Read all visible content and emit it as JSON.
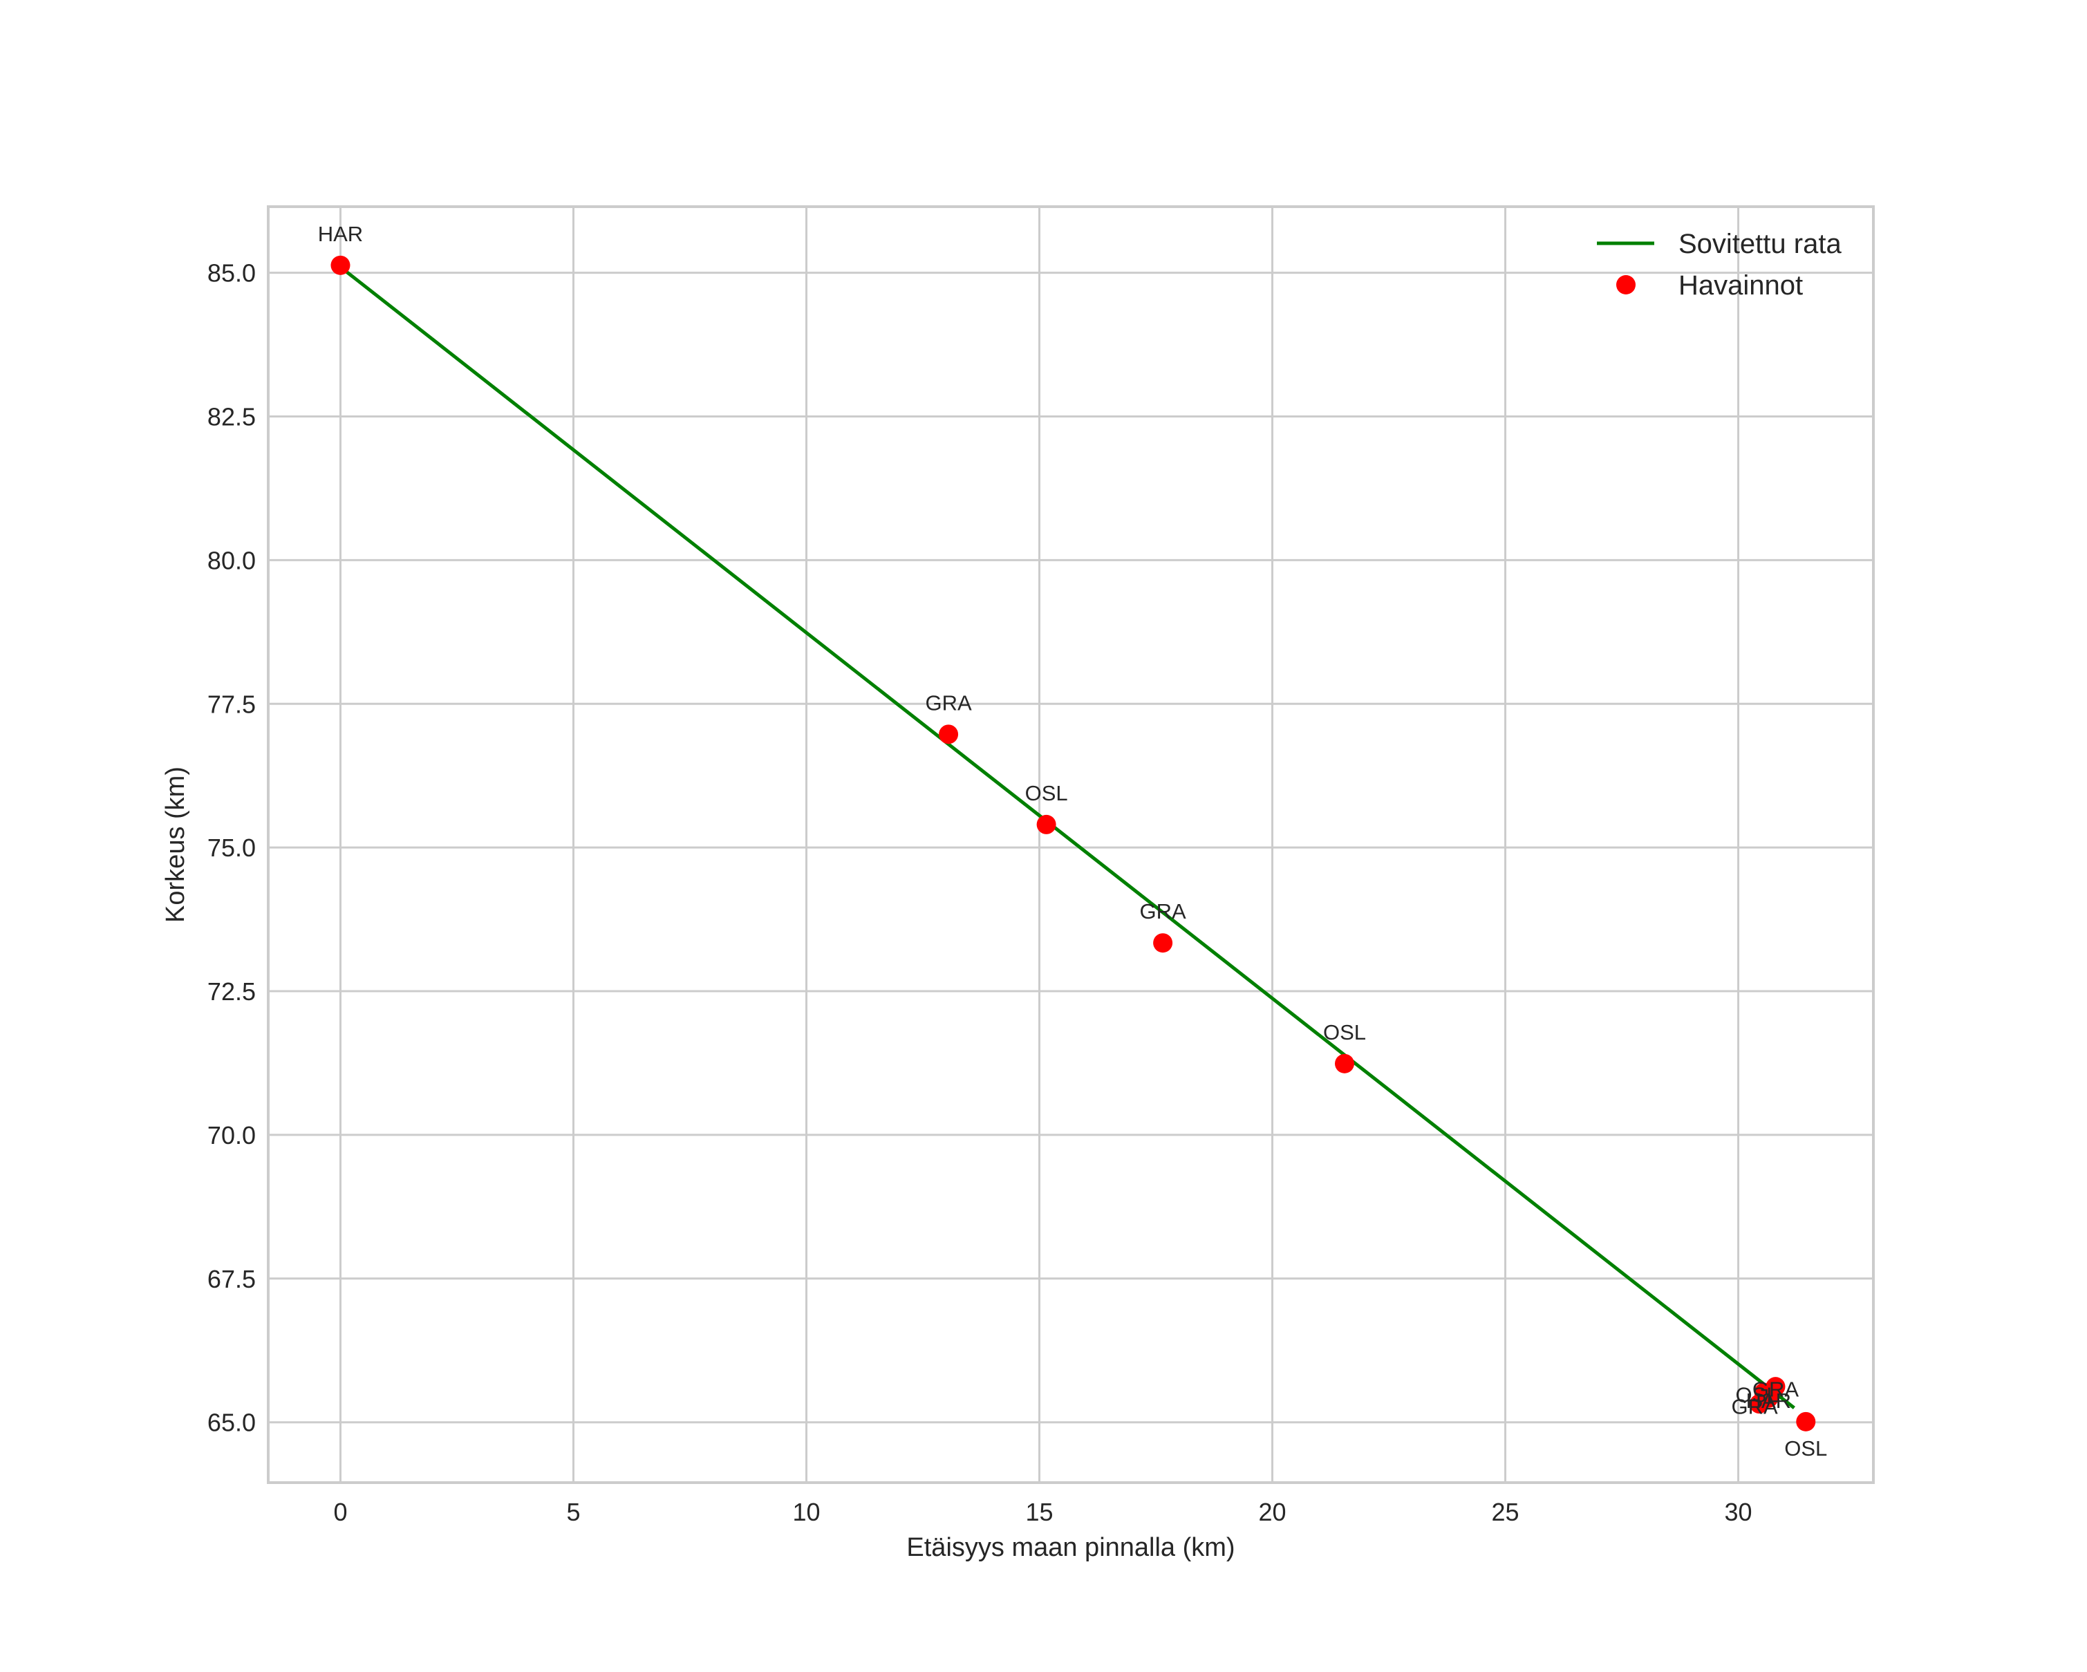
{
  "chart_data": {
    "type": "scatter",
    "title": "",
    "xlabel": "Etäisyys maan pinnalla (km)",
    "ylabel": "Korkeus (km)",
    "xlim": [
      -1.55,
      32.9
    ],
    "ylim": [
      63.95,
      86.15
    ],
    "xticks": [
      0,
      5,
      10,
      15,
      20,
      25,
      30
    ],
    "xtick_labels": [
      "0",
      "5",
      "10",
      "15",
      "20",
      "25",
      "30"
    ],
    "yticks": [
      65.0,
      67.5,
      70.0,
      72.5,
      75.0,
      77.5,
      80.0,
      82.5,
      85.0
    ],
    "ytick_labels": [
      "65.0",
      "67.5",
      "70.0",
      "72.5",
      "75.0",
      "77.5",
      "80.0",
      "82.5",
      "85.0"
    ],
    "grid": true,
    "legend_position": "upper right",
    "series": [
      {
        "name": "Sovitettu rata",
        "type": "line",
        "color": "#008000",
        "x": [
          0.0,
          31.2
        ],
        "y": [
          85.1,
          65.25
        ]
      },
      {
        "name": "Havainnot",
        "type": "scatter",
        "color": "#ff0000",
        "points": [
          {
            "x": 0.0,
            "y": 85.13,
            "label": "HAR",
            "label_dx": 0,
            "label_dy": -0.55
          },
          {
            "x": 13.05,
            "y": 76.97,
            "label": "GRA",
            "label_dx": 0,
            "label_dy": -0.55
          },
          {
            "x": 15.15,
            "y": 75.4,
            "label": "OSL",
            "label_dx": 0,
            "label_dy": -0.55
          },
          {
            "x": 17.65,
            "y": 73.34,
            "label": "GRA",
            "label_dx": 0,
            "label_dy": -0.55
          },
          {
            "x": 21.55,
            "y": 71.24,
            "label": "OSL",
            "label_dx": 0,
            "label_dy": -0.55
          },
          {
            "x": 30.8,
            "y": 65.62,
            "label": "GRA",
            "label_dx": 0,
            "label_dy": -0.55
          },
          {
            "x": 30.55,
            "y": 65.52,
            "label": "OSL",
            "label_dx": -0.15,
            "label_dy": -0.55
          },
          {
            "x": 30.65,
            "y": 65.42,
            "label": "HAR",
            "label_dx": 0.0,
            "label_dy": -0.55
          },
          {
            "x": 30.45,
            "y": 65.32,
            "label": "GRA",
            "label_dx": -0.1,
            "label_dy": -0.55
          },
          {
            "x": 31.45,
            "y": 65.01,
            "label": "OSL",
            "label_dx": 0,
            "label_dy": -0.55
          }
        ]
      }
    ]
  },
  "legend": {
    "items": [
      {
        "label": "Sovitettu rata",
        "marker": "line",
        "color": "#008000"
      },
      {
        "label": "Havainnot",
        "marker": "dot",
        "color": "#ff0000"
      }
    ]
  }
}
